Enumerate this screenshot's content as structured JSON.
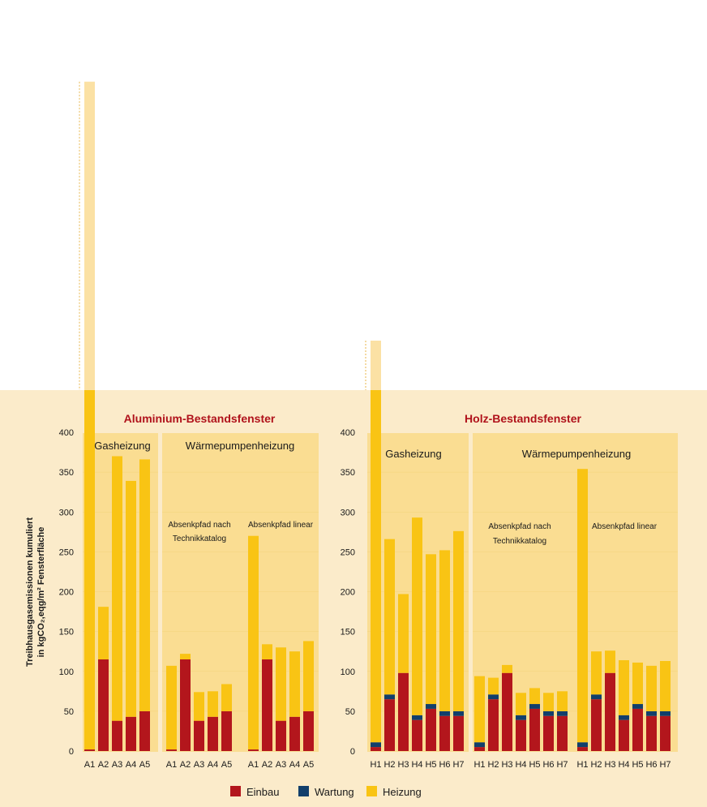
{
  "colors": {
    "einbau": "#b3161c",
    "wartung": "#123f6b",
    "heizung": "#f9c414",
    "heizung_overflow": "#fbe1a4",
    "panel_bg": "#fbebca",
    "group_bg": "#fadd92",
    "page_bg": "#ffffff"
  },
  "y_axis": {
    "label_line1": "Treibhausgasemissionen kumuliert",
    "label_line2": "in kgCO₂,eqg/m² Fensterfläche",
    "ticks": [
      "0",
      "50",
      "100",
      "150",
      "200",
      "250",
      "300",
      "350",
      "400"
    ]
  },
  "legend": [
    "Einbau",
    "Wartung",
    "Heizung"
  ],
  "chart_data": {
    "type": "bar",
    "stacked": true,
    "ylim": [
      0,
      400
    ],
    "series_names": [
      "Einbau",
      "Wartung",
      "Heizung"
    ],
    "panels": [
      {
        "title": "Aluminium-Bestandsfenster",
        "groups": [
          {
            "title": "Gasheizung",
            "subtitles": [],
            "bars": [
              {
                "label": "A1",
                "einbau": 2,
                "wartung": 0,
                "heizung": 838
              },
              {
                "label": "A2",
                "einbau": 115,
                "wartung": 0,
                "heizung": 66
              },
              {
                "label": "A3",
                "einbau": 38,
                "wartung": 0,
                "heizung": 332
              },
              {
                "label": "A4",
                "einbau": 43,
                "wartung": 0,
                "heizung": 296
              },
              {
                "label": "A5",
                "einbau": 50,
                "wartung": 0,
                "heizung": 316
              }
            ]
          },
          {
            "title": "Wärmepumpenheizung",
            "subtitles": [
              {
                "lines": [
                  "Absenkpfad nach",
                  "Technikkatalog"
                ]
              },
              {
                "lines": [
                  "Absenkpfad linear"
                ]
              }
            ],
            "bars": [
              {
                "label": "A1",
                "einbau": 2,
                "wartung": 0,
                "heizung": 105
              },
              {
                "label": "A2",
                "einbau": 115,
                "wartung": 0,
                "heizung": 7
              },
              {
                "label": "A3",
                "einbau": 38,
                "wartung": 0,
                "heizung": 36
              },
              {
                "label": "A4",
                "einbau": 43,
                "wartung": 0,
                "heizung": 32
              },
              {
                "label": "A5",
                "einbau": 50,
                "wartung": 0,
                "heizung": 34
              },
              {
                "label": "A1",
                "einbau": 2,
                "wartung": 0,
                "heizung": 268
              },
              {
                "label": "A2",
                "einbau": 115,
                "wartung": 0,
                "heizung": 19
              },
              {
                "label": "A3",
                "einbau": 38,
                "wartung": 0,
                "heizung": 92
              },
              {
                "label": "A4",
                "einbau": 43,
                "wartung": 0,
                "heizung": 82
              },
              {
                "label": "A5",
                "einbau": 50,
                "wartung": 0,
                "heizung": 88
              }
            ]
          }
        ]
      },
      {
        "title": "Holz-Bestandsfenster",
        "groups": [
          {
            "title": "Gasheizung",
            "subtitles": [],
            "bars": [
              {
                "label": "H1",
                "einbau": 5,
                "wartung": 6,
                "heizung": 504
              },
              {
                "label": "H2",
                "einbau": 65,
                "wartung": 6,
                "heizung": 195
              },
              {
                "label": "H3",
                "einbau": 98,
                "wartung": 0,
                "heizung": 99
              },
              {
                "label": "H4",
                "einbau": 39,
                "wartung": 6,
                "heizung": 248
              },
              {
                "label": "H5",
                "einbau": 53,
                "wartung": 6,
                "heizung": 188
              },
              {
                "label": "H6",
                "einbau": 44,
                "wartung": 6,
                "heizung": 202
              },
              {
                "label": "H7",
                "einbau": 44,
                "wartung": 6,
                "heizung": 226
              }
            ]
          },
          {
            "title": "Wärmepumpenheizung",
            "subtitles": [
              {
                "lines": [
                  "Absenkpfad nach",
                  "Technikkatalog"
                ]
              },
              {
                "lines": [
                  "Absenkpfad linear"
                ]
              }
            ],
            "bars": [
              {
                "label": "H1",
                "einbau": 5,
                "wartung": 6,
                "heizung": 83
              },
              {
                "label": "H2",
                "einbau": 65,
                "wartung": 6,
                "heizung": 21
              },
              {
                "label": "H3",
                "einbau": 98,
                "wartung": 0,
                "heizung": 10
              },
              {
                "label": "H4",
                "einbau": 39,
                "wartung": 6,
                "heizung": 28
              },
              {
                "label": "H5",
                "einbau": 53,
                "wartung": 6,
                "heizung": 20
              },
              {
                "label": "H6",
                "einbau": 44,
                "wartung": 6,
                "heizung": 23
              },
              {
                "label": "H7",
                "einbau": 44,
                "wartung": 6,
                "heizung": 25
              },
              {
                "label": "H1",
                "einbau": 5,
                "wartung": 6,
                "heizung": 343
              },
              {
                "label": "H2",
                "einbau": 65,
                "wartung": 6,
                "heizung": 54
              },
              {
                "label": "H3",
                "einbau": 98,
                "wartung": 0,
                "heizung": 28
              },
              {
                "label": "H4",
                "einbau": 39,
                "wartung": 6,
                "heizung": 69
              },
              {
                "label": "H5",
                "einbau": 53,
                "wartung": 6,
                "heizung": 52
              },
              {
                "label": "H6",
                "einbau": 44,
                "wartung": 6,
                "heizung": 57
              },
              {
                "label": "H7",
                "einbau": 44,
                "wartung": 6,
                "heizung": 63
              }
            ]
          }
        ]
      }
    ]
  }
}
